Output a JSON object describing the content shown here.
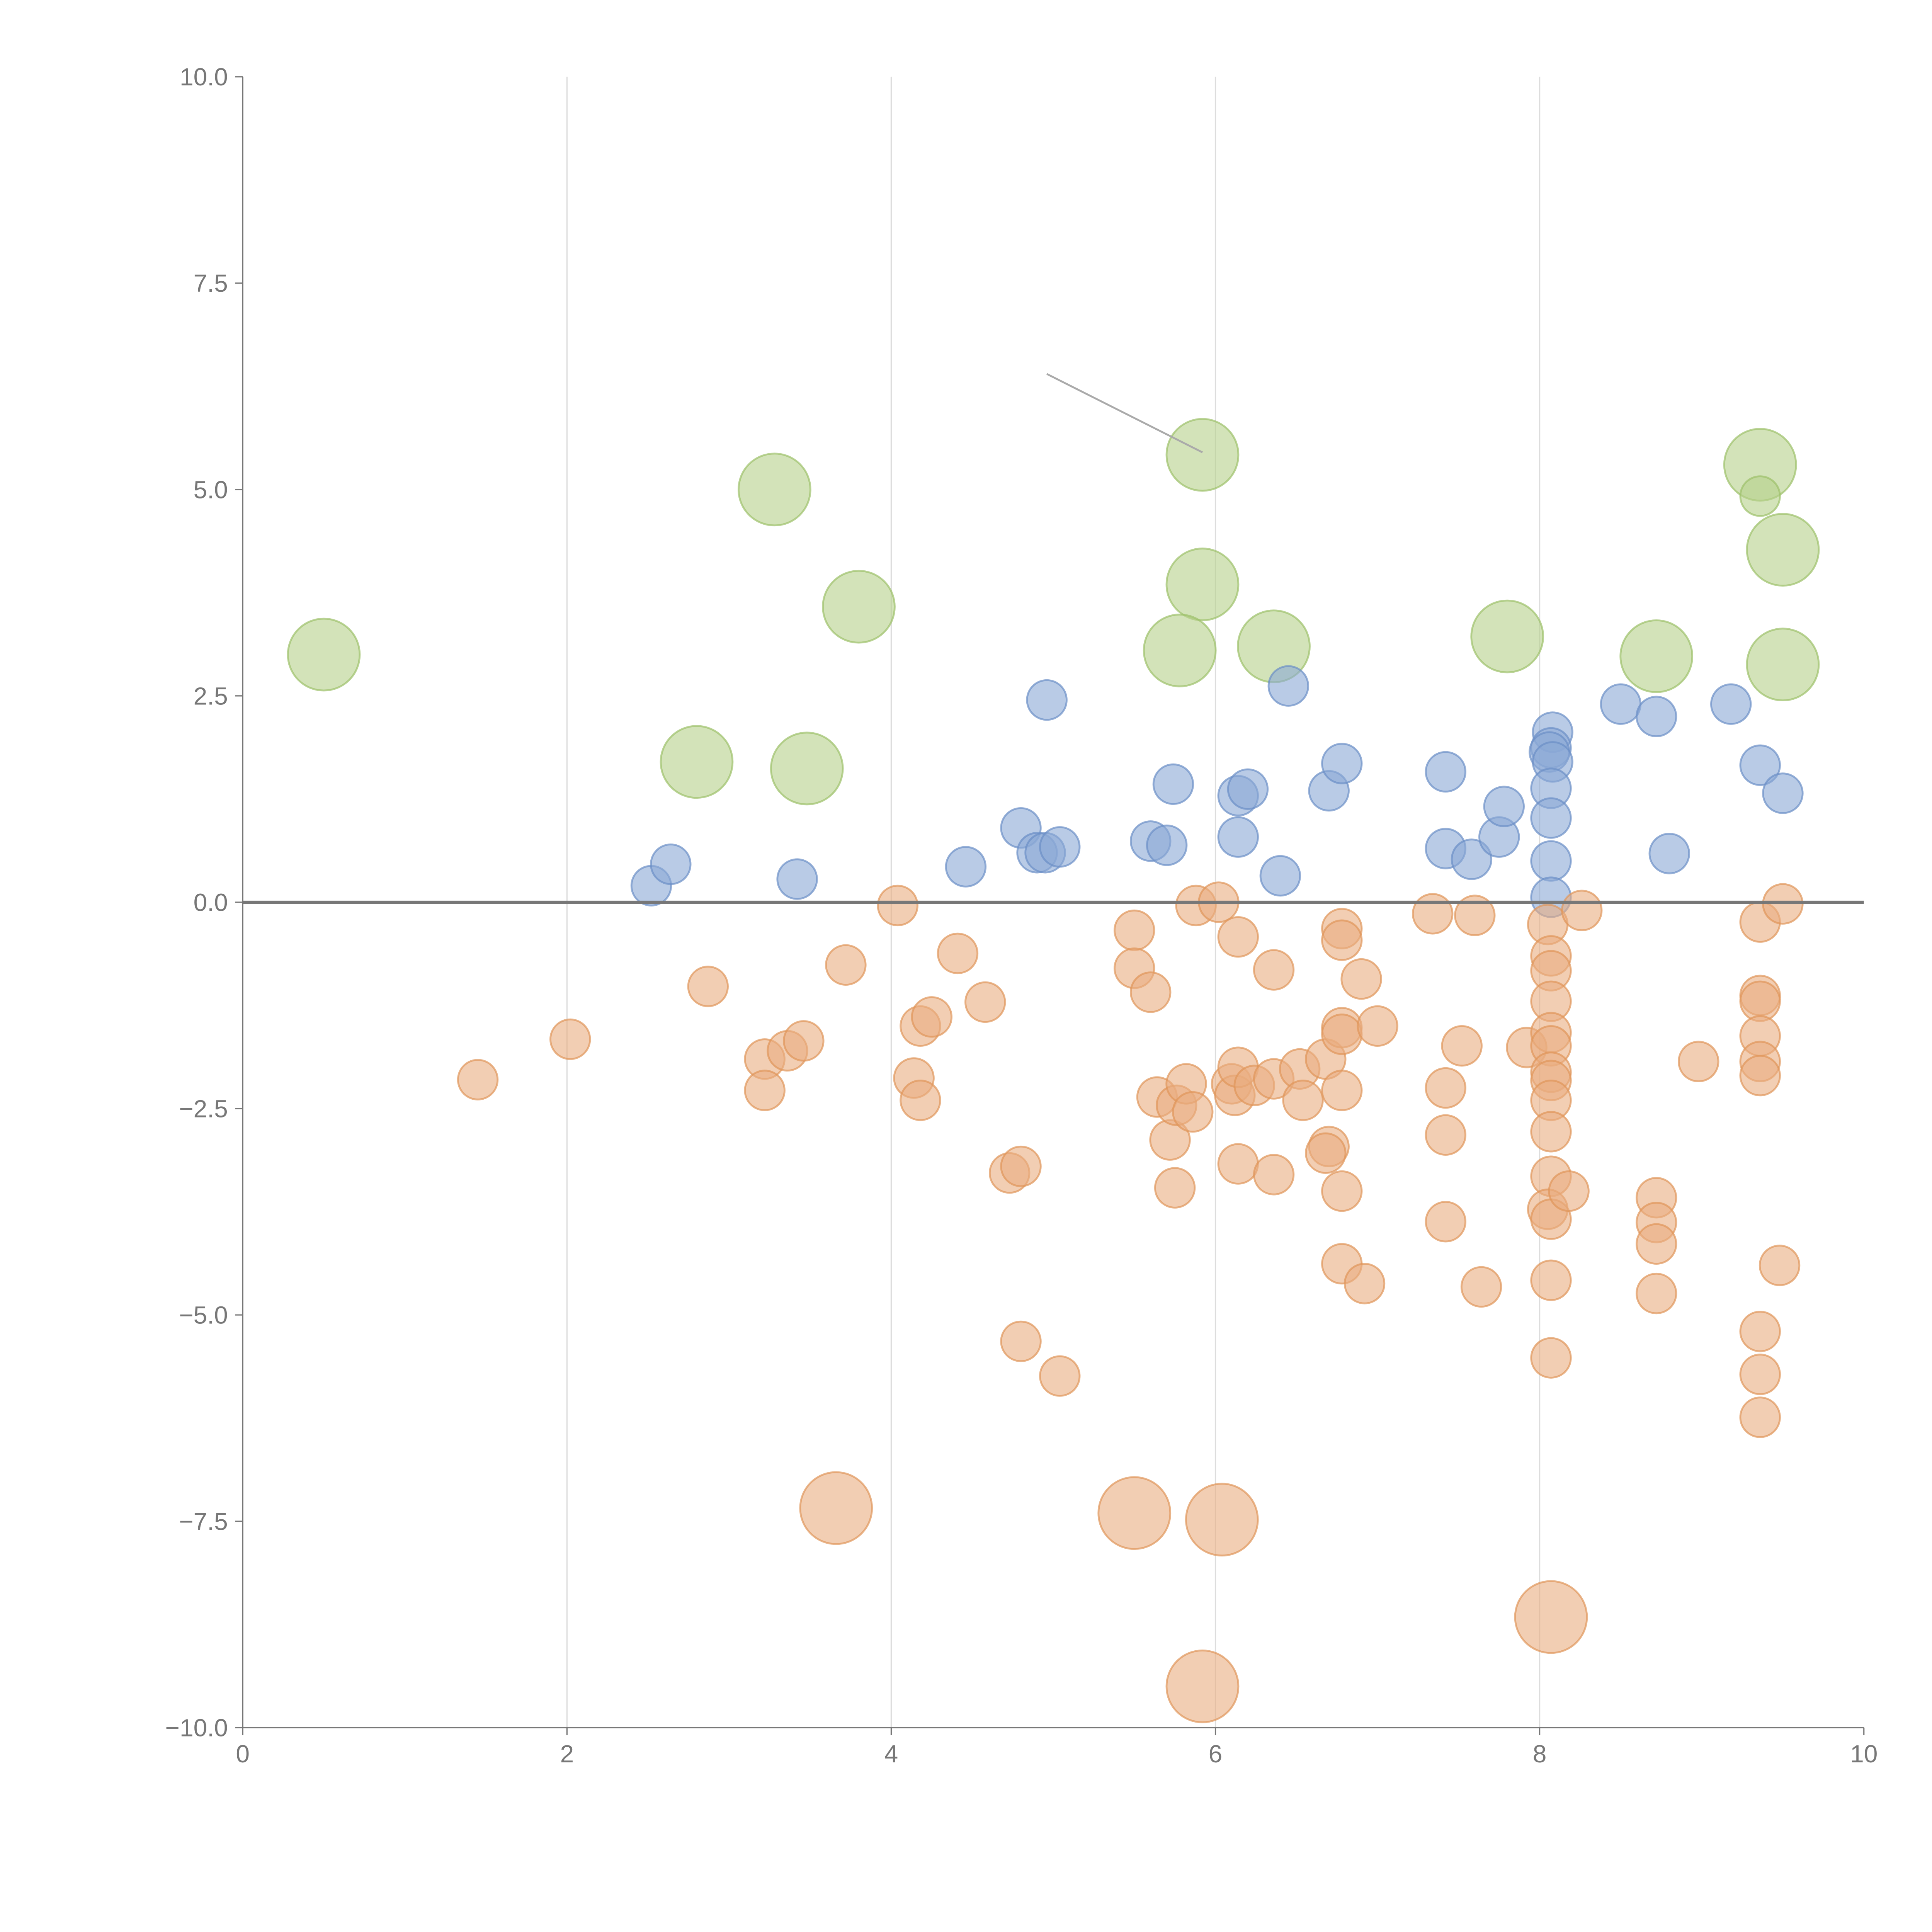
{
  "chart_data": {
    "type": "scatter",
    "title": "",
    "xlabel": "",
    "ylabel": "",
    "xlim": [
      0,
      10
    ],
    "ylim": [
      -10,
      10
    ],
    "grid": "vertical lines at x ticks",
    "x_ticks": [
      "0",
      "2",
      "4",
      "6",
      "8",
      "10"
    ],
    "y_ticks": [
      "−10.0",
      "−7.5",
      "−5.0",
      "−2.5",
      "0.0",
      "2.5",
      "5.0",
      "7.5",
      "10.0"
    ],
    "annotation_line": {
      "from": [
        4.96,
        6.4
      ],
      "to": [
        5.92,
        5.45
      ]
    },
    "series": [
      {
        "name": "green-large",
        "color": "#b5d18a",
        "stroke": "#9cc06a",
        "size": "large",
        "points": [
          [
            0.5,
            3.0
          ],
          [
            3.28,
            5.0
          ],
          [
            2.8,
            1.7
          ],
          [
            3.48,
            1.62
          ],
          [
            3.8,
            3.58
          ],
          [
            5.92,
            5.42
          ],
          [
            5.92,
            3.85
          ],
          [
            5.78,
            3.05
          ],
          [
            6.36,
            3.1
          ],
          [
            7.8,
            3.22
          ],
          [
            8.72,
            2.98
          ],
          [
            9.36,
            5.3
          ],
          [
            9.5,
            4.27
          ],
          [
            9.5,
            2.88
          ]
        ]
      },
      {
        "name": "green-small",
        "color": "#b5d18a",
        "stroke": "#9cc06a",
        "size": "small",
        "points": [
          [
            9.36,
            4.92
          ]
        ]
      },
      {
        "name": "blue",
        "color": "#8aa9d6",
        "stroke": "#6b8fc6",
        "size": "small",
        "points": [
          [
            2.52,
            0.2
          ],
          [
            2.64,
            0.46
          ],
          [
            3.42,
            0.28
          ],
          [
            4.46,
            0.43
          ],
          [
            4.8,
            0.9
          ],
          [
            4.96,
            2.45
          ],
          [
            4.9,
            0.6
          ],
          [
            4.95,
            0.6
          ],
          [
            5.04,
            0.67
          ],
          [
            5.6,
            0.74
          ],
          [
            5.74,
            1.43
          ],
          [
            5.7,
            0.69
          ],
          [
            6.14,
            1.29
          ],
          [
            6.2,
            1.37
          ],
          [
            6.14,
            0.79
          ],
          [
            6.4,
            0.32
          ],
          [
            6.45,
            2.62
          ],
          [
            6.7,
            1.35
          ],
          [
            6.78,
            1.68
          ],
          [
            7.42,
            1.58
          ],
          [
            7.42,
            0.65
          ],
          [
            7.58,
            0.52
          ],
          [
            7.75,
            0.79
          ],
          [
            7.78,
            1.16
          ],
          [
            8.08,
            2.06
          ],
          [
            8.07,
            1.87
          ],
          [
            8.06,
            1.82
          ],
          [
            8.08,
            1.7
          ],
          [
            8.07,
            1.38
          ],
          [
            8.07,
            1.02
          ],
          [
            8.07,
            0.5
          ],
          [
            8.07,
            0.06
          ],
          [
            8.5,
            2.4
          ],
          [
            8.72,
            2.25
          ],
          [
            8.8,
            0.59
          ],
          [
            9.18,
            2.4
          ],
          [
            9.36,
            1.66
          ],
          [
            9.5,
            1.32
          ]
        ]
      },
      {
        "name": "orange",
        "color": "#eaae80",
        "stroke": "#e0955a",
        "size": "small",
        "points": [
          [
            1.45,
            -2.15
          ],
          [
            2.02,
            -1.66
          ],
          [
            2.87,
            -1.02
          ],
          [
            3.22,
            -1.9
          ],
          [
            3.22,
            -2.28
          ],
          [
            3.36,
            -1.8
          ],
          [
            3.46,
            -1.68
          ],
          [
            3.72,
            -0.76
          ],
          [
            4.04,
            -0.04
          ],
          [
            4.14,
            -2.13
          ],
          [
            4.18,
            -1.5
          ],
          [
            4.18,
            -2.4
          ],
          [
            4.25,
            -1.39
          ],
          [
            4.41,
            -0.62
          ],
          [
            4.58,
            -1.21
          ],
          [
            4.73,
            -3.28
          ],
          [
            4.8,
            -3.2
          ],
          [
            4.8,
            -5.32
          ],
          [
            5.04,
            -5.74
          ],
          [
            5.5,
            -0.34
          ],
          [
            5.5,
            -0.8
          ],
          [
            5.6,
            -1.09
          ],
          [
            5.64,
            -2.36
          ],
          [
            5.72,
            -2.88
          ],
          [
            5.75,
            -3.46
          ],
          [
            5.76,
            -2.46
          ],
          [
            5.82,
            -2.2
          ],
          [
            5.86,
            -2.54
          ],
          [
            5.88,
            -0.04
          ],
          [
            6.02,
            0.0
          ],
          [
            6.14,
            -0.42
          ],
          [
            6.1,
            -2.2
          ],
          [
            6.12,
            -2.34
          ],
          [
            6.14,
            -2.0
          ],
          [
            6.14,
            -3.17
          ],
          [
            6.24,
            -2.22
          ],
          [
            6.36,
            -0.82
          ],
          [
            6.36,
            -2.14
          ],
          [
            6.36,
            -3.3
          ],
          [
            6.52,
            -2.02
          ],
          [
            6.54,
            -2.4
          ],
          [
            6.68,
            -1.9
          ],
          [
            6.7,
            -2.96
          ],
          [
            6.68,
            -3.04
          ],
          [
            6.78,
            -0.32
          ],
          [
            6.78,
            -0.46
          ],
          [
            6.78,
            -1.52
          ],
          [
            6.78,
            -1.6
          ],
          [
            6.78,
            -2.28
          ],
          [
            6.78,
            -3.5
          ],
          [
            6.78,
            -4.38
          ],
          [
            6.9,
            -0.93
          ],
          [
            6.92,
            -4.62
          ],
          [
            7.0,
            -1.5
          ],
          [
            7.34,
            -0.14
          ],
          [
            7.42,
            -2.25
          ],
          [
            7.42,
            -2.82
          ],
          [
            7.42,
            -3.87
          ],
          [
            7.52,
            -1.74
          ],
          [
            7.6,
            -0.16
          ],
          [
            7.64,
            -4.66
          ],
          [
            7.92,
            -1.76
          ],
          [
            8.05,
            -0.27
          ],
          [
            8.07,
            -0.65
          ],
          [
            8.07,
            -0.83
          ],
          [
            8.07,
            -1.2
          ],
          [
            8.07,
            -1.58
          ],
          [
            8.07,
            -1.74
          ],
          [
            8.07,
            -2.06
          ],
          [
            8.07,
            -2.16
          ],
          [
            8.07,
            -2.4
          ],
          [
            8.07,
            -2.78
          ],
          [
            8.07,
            -3.32
          ],
          [
            8.05,
            -3.72
          ],
          [
            8.07,
            -3.84
          ],
          [
            8.07,
            -4.58
          ],
          [
            8.07,
            -5.52
          ],
          [
            8.26,
            -0.1
          ],
          [
            8.18,
            -3.5
          ],
          [
            8.72,
            -3.58
          ],
          [
            8.72,
            -3.88
          ],
          [
            8.72,
            -4.14
          ],
          [
            8.72,
            -4.74
          ],
          [
            8.98,
            -1.93
          ],
          [
            9.36,
            -0.24
          ],
          [
            9.36,
            -1.13
          ],
          [
            9.36,
            -1.2
          ],
          [
            9.36,
            -1.62
          ],
          [
            9.36,
            -1.93
          ],
          [
            9.36,
            -2.1
          ],
          [
            9.36,
            -5.2
          ],
          [
            9.36,
            -5.72
          ],
          [
            9.36,
            -6.24
          ],
          [
            9.5,
            -0.02
          ],
          [
            9.48,
            -4.4
          ]
        ]
      },
      {
        "name": "orange-large",
        "color": "#eaae80",
        "stroke": "#e0955a",
        "size": "large",
        "points": [
          [
            3.66,
            -7.34
          ],
          [
            5.5,
            -7.4
          ],
          [
            6.04,
            -7.48
          ],
          [
            8.07,
            -8.66
          ],
          [
            5.92,
            -9.5
          ]
        ]
      }
    ]
  }
}
